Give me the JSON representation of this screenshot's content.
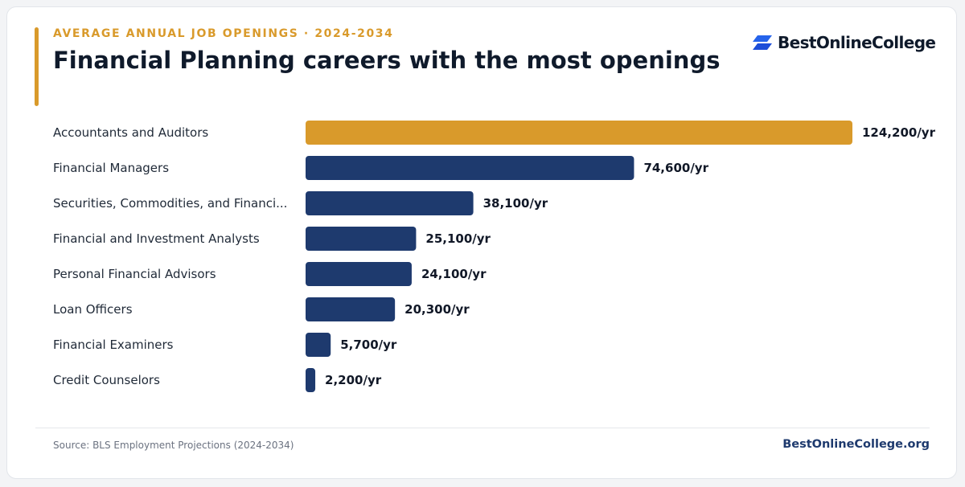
{
  "header": {
    "eyebrow": "AVERAGE ANNUAL JOB OPENINGS · 2024-2034",
    "title": "Financial Planning careers with the most openings"
  },
  "brand": {
    "name": "BestOnlineCollege",
    "icon": "stacked-parallelogram-logo-icon",
    "color": "#2563eb"
  },
  "colors": {
    "highlight": "#d99a2b",
    "bar": "#1e3a6e"
  },
  "chart_data": {
    "type": "bar",
    "orientation": "horizontal",
    "title": "Financial Planning careers with the most openings",
    "categories": [
      "Accountants and Auditors",
      "Financial Managers",
      "Securities, Commodities, and Financi...",
      "Financial and Investment Analysts",
      "Personal Financial Advisors",
      "Loan Officers",
      "Financial Examiners",
      "Credit Counselors"
    ],
    "values": [
      124200,
      74600,
      38100,
      25100,
      24100,
      20300,
      5700,
      2200
    ],
    "value_labels": [
      "124,200/yr",
      "74,600/yr",
      "38,100/yr",
      "25,100/yr",
      "24,100/yr",
      "20,300/yr",
      "5,700/yr",
      "2,200/yr"
    ],
    "highlight_index": 0,
    "xlim": [
      0,
      124200
    ],
    "grid": false
  },
  "footer": {
    "source": "Source: BLS Employment Projections (2024-2034)",
    "site": "BestOnlineCollege.org"
  }
}
